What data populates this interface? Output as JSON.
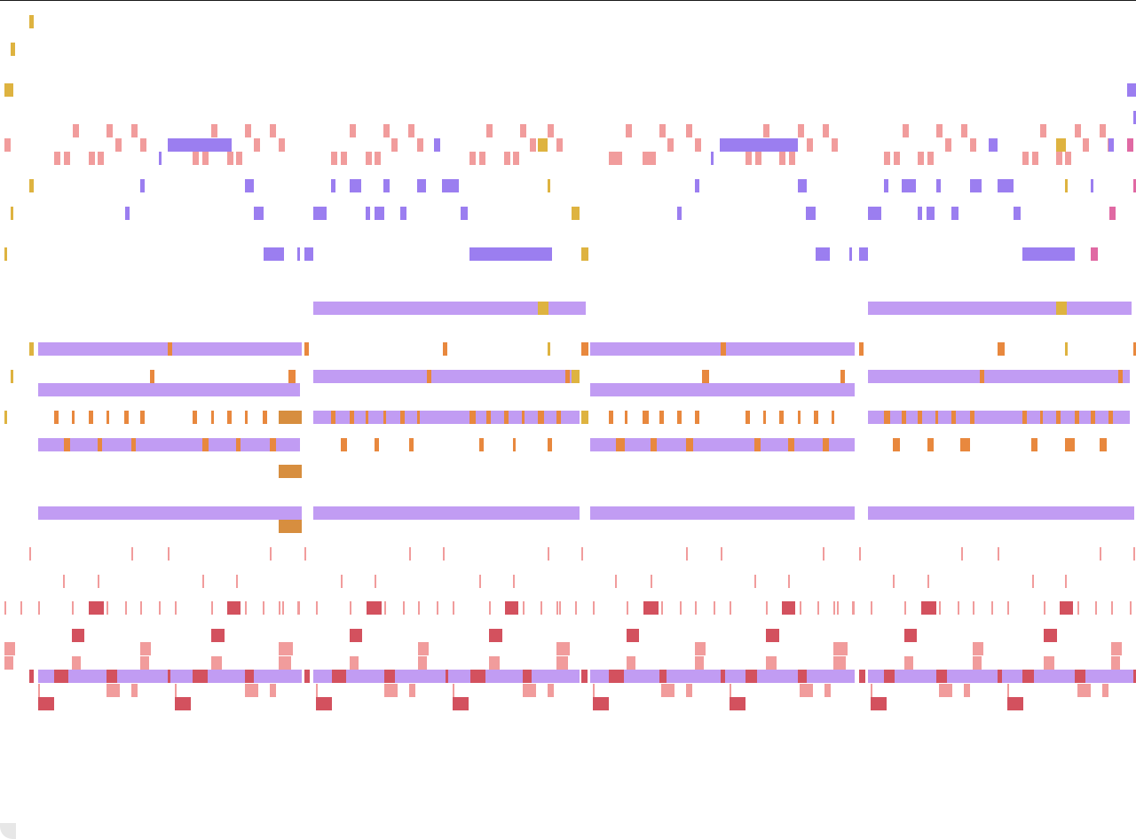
{
  "view": "piano-roll",
  "colors": {
    "background": "#ffffff",
    "border": "#1a1a1a",
    "yellow": "#deb340",
    "violet": "#9b7ef0",
    "lilac": "#c19cf3",
    "orange": "#e8883e",
    "darkOrange": "#d78e3f",
    "salmon": "#f19c9c",
    "crimson": "#d3515e",
    "magenta": "#e069a3"
  },
  "palette": [
    "yellow",
    "violet",
    "lilac",
    "orange",
    "darkOrange",
    "salmon",
    "crimson",
    "magenta"
  ]
}
